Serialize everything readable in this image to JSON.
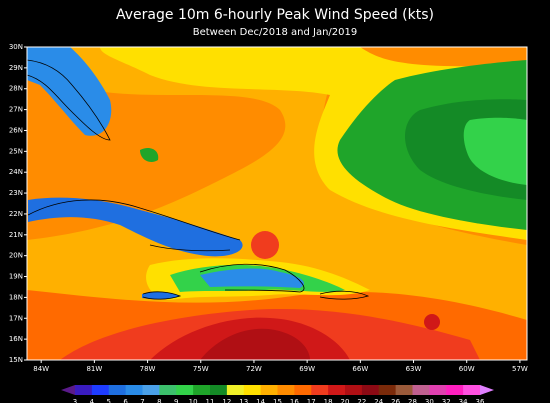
{
  "chart_data": {
    "type": "map",
    "title": "Average 10m 6-hourly Peak Wind Speed (kts)",
    "subtitle": "Between Dec/2018 and Jan/2019",
    "xlim": [
      -84.8,
      -56.6
    ],
    "ylim": [
      15,
      30
    ],
    "xticks": [
      {
        "value": -84,
        "label": "84W"
      },
      {
        "value": -81,
        "label": "81W"
      },
      {
        "value": -78,
        "label": "78W"
      },
      {
        "value": -75,
        "label": "75W"
      },
      {
        "value": -72,
        "label": "72W"
      },
      {
        "value": -69,
        "label": "69W"
      },
      {
        "value": -66,
        "label": "66W"
      },
      {
        "value": -63,
        "label": "63W"
      },
      {
        "value": -60,
        "label": "60W"
      },
      {
        "value": -57,
        "label": "57W"
      }
    ],
    "yticks": [
      {
        "value": 15,
        "label": "15N"
      },
      {
        "value": 16,
        "label": "16N"
      },
      {
        "value": 17,
        "label": "17N"
      },
      {
        "value": 18,
        "label": "18N"
      },
      {
        "value": 19,
        "label": "19N"
      },
      {
        "value": 20,
        "label": "20N"
      },
      {
        "value": 21,
        "label": "21N"
      },
      {
        "value": 22,
        "label": "22N"
      },
      {
        "value": 23,
        "label": "23N"
      },
      {
        "value": 24,
        "label": "24N"
      },
      {
        "value": 25,
        "label": "25N"
      },
      {
        "value": 26,
        "label": "26N"
      },
      {
        "value": 27,
        "label": "27N"
      },
      {
        "value": 28,
        "label": "28N"
      },
      {
        "value": 29,
        "label": "29N"
      },
      {
        "value": 30,
        "label": "30N"
      }
    ],
    "colorbar": {
      "levels": [
        3,
        4,
        5,
        6,
        7,
        8,
        9,
        10,
        11,
        12,
        13,
        14,
        15,
        16,
        17,
        18,
        20,
        22,
        24,
        26,
        28,
        30,
        32,
        34,
        36
      ],
      "colors": [
        "#5a1a8a",
        "#3a1cc0",
        "#1e3cff",
        "#1f6fe0",
        "#2a8ce8",
        "#4aa0e8",
        "#3cc06c",
        "#33d24a",
        "#1fa52a",
        "#148a26",
        "#f0f028",
        "#ffe000",
        "#ffb000",
        "#ff8c00",
        "#ff6a00",
        "#f03c1e",
        "#d01818",
        "#b00f14",
        "#8c0a14",
        "#7a2a0a",
        "#9a5a3a",
        "#c06090",
        "#e040b0",
        "#ff20c0",
        "#ff50e0",
        "#e080ff"
      ]
    }
  }
}
